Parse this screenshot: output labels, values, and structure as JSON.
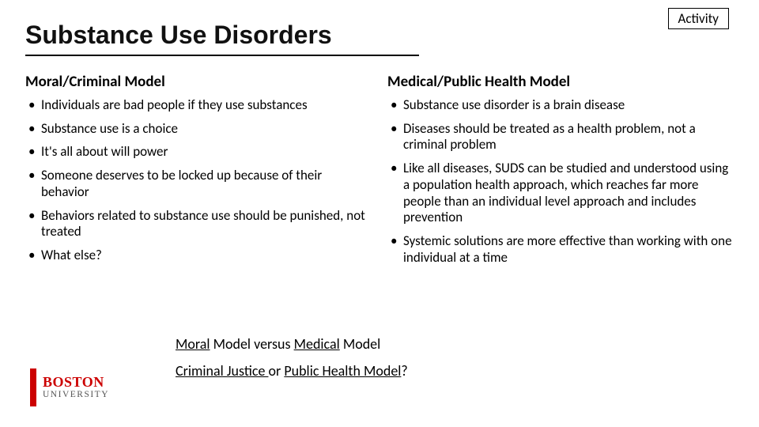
{
  "badge": {
    "label": "Activity"
  },
  "title": "Substance Use Disorders",
  "left": {
    "heading": "Moral/Criminal Model",
    "items": [
      "Individuals are bad people if they use substances",
      "Substance use is a choice",
      "It's all about will power",
      "Someone deserves to be locked up because of their behavior",
      "Behaviors related to substance use should be punished, not treated",
      "What else?"
    ]
  },
  "right": {
    "heading": "Medical/Public Health Model",
    "items": [
      "Substance use disorder is a brain disease",
      "Diseases should be treated as a health problem, not a criminal problem",
      "Like all diseases, SUDS can be studied and understood using a population health approach, which reaches far more people than an individual level approach and includes prevention",
      "Systemic solutions are more effective than working with one individual at a time"
    ]
  },
  "footer": {
    "line1": {
      "u1": "Moral",
      "mid1": " Model versus ",
      "u2": "Medical",
      "end1": " Model"
    },
    "line2": {
      "u1": "Criminal Justice ",
      "mid1": "or ",
      "u2": "Public Health Model",
      "end1": "?"
    }
  },
  "logo": {
    "line1": "BOSTON",
    "line2": "UNIVERSITY"
  },
  "colors": {
    "accent": "#cc0000",
    "text": "#000000",
    "background": "#ffffff"
  }
}
